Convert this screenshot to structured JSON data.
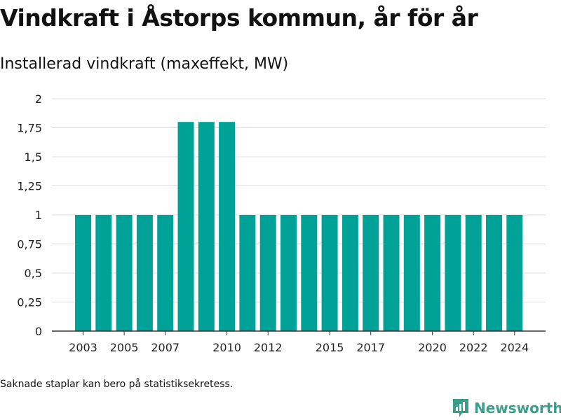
{
  "header": {
    "title": "Vindkraft i Åstorps kommun, år för år",
    "subtitle": "Installerad vindkraft (maxeffekt, MW)"
  },
  "footer": {
    "note": "Saknade staplar kan bero på statistiksekretess.",
    "brand": "Newsworthy",
    "brand_color": "#3b9e8a"
  },
  "colors": {
    "bar": "#00a297",
    "grid": "#dddddd",
    "axis": "#333333"
  },
  "chart_data": {
    "type": "bar",
    "title": "Installerad vindkraft (maxeffekt, MW)",
    "xlabel": "",
    "ylabel": "",
    "ylim": [
      0,
      2
    ],
    "yticks": [
      0,
      0.25,
      0.5,
      0.75,
      1,
      1.25,
      1.5,
      1.75,
      2
    ],
    "ytick_labels": [
      "0",
      "0,25",
      "0,5",
      "0,75",
      "1",
      "1,25",
      "1,5",
      "1,75",
      "2"
    ],
    "categories": [
      2003,
      2004,
      2005,
      2006,
      2007,
      2008,
      2009,
      2010,
      2011,
      2012,
      2013,
      2014,
      2015,
      2016,
      2017,
      2018,
      2019,
      2020,
      2021,
      2022,
      2023,
      2024
    ],
    "values": [
      1,
      1,
      1,
      1,
      1,
      1.8,
      1.8,
      1.8,
      1,
      1,
      1,
      1,
      1,
      1,
      1,
      1,
      1,
      1,
      1,
      1,
      1,
      1
    ],
    "xtick_labels": [
      "2003",
      "2005",
      "2007",
      "2010",
      "2012",
      "2015",
      "2017",
      "2020",
      "2022",
      "2024"
    ],
    "grid": true
  }
}
